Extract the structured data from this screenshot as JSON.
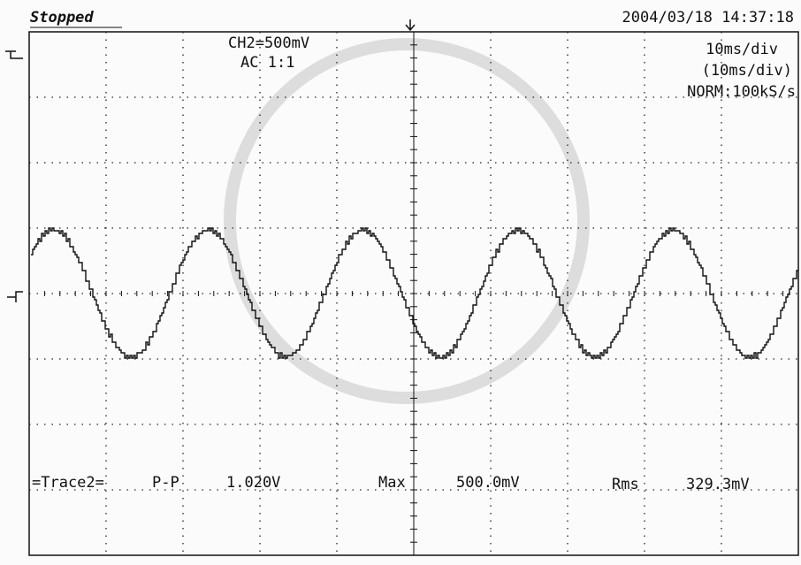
{
  "header": {
    "status": "Stopped",
    "datetime": "2004/03/18  14:37:18"
  },
  "channel": {
    "scale": "CH2=500mV",
    "coupling": "AC 1:1"
  },
  "timebase": {
    "div": "10ms/div",
    "div_zoom": "(10ms/div)",
    "mode": "NORM:100kS/s"
  },
  "measurements": {
    "trace": "=Trace2=",
    "items": [
      {
        "label": "P-P",
        "value": "1.020V"
      },
      {
        "label": "Max",
        "value": "500.0mV"
      },
      {
        "label": "Rms",
        "value": "329.3mV"
      }
    ]
  }
}
